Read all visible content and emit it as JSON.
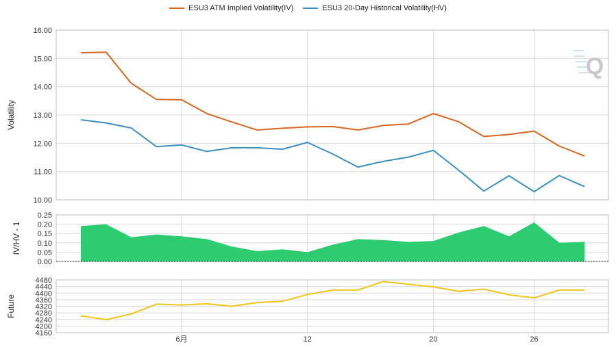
{
  "chart_data": [
    {
      "panel": "volatility",
      "type": "line",
      "ylabel": "Volatility",
      "ylim": [
        10,
        16
      ],
      "yticks": [
        "10.00",
        "11.00",
        "12.00",
        "13.00",
        "14.00",
        "15.00",
        "16.00"
      ],
      "grid": true,
      "legend": "top-center",
      "series": [
        {
          "name": "ESU3 ATM Implied Volatility(IV)",
          "color": "#d9661f",
          "values": [
            15.2,
            15.22,
            14.12,
            13.55,
            13.54,
            13.05,
            12.75,
            12.47,
            12.53,
            12.58,
            12.59,
            12.47,
            12.63,
            12.68,
            13.05,
            12.76,
            12.24,
            12.31,
            12.43,
            11.9,
            11.55
          ]
        },
        {
          "name": "ESU3 20-Day Historical Volatility(HV)",
          "color": "#3a8fbf",
          "values": [
            12.83,
            12.72,
            12.54,
            11.88,
            11.94,
            11.71,
            11.84,
            11.84,
            11.79,
            12.03,
            11.62,
            11.16,
            11.36,
            11.51,
            11.75,
            11.05,
            10.31,
            10.85,
            10.29,
            10.86,
            10.47
          ]
        }
      ]
    },
    {
      "panel": "ratio",
      "type": "area",
      "ylabel": "IV/HV - 1",
      "ylim": [
        0,
        0.25
      ],
      "yticks": [
        "0.00",
        "0.05",
        "0.10",
        "0.15",
        "0.20",
        "0.25"
      ],
      "color": "#2ecc71",
      "values": [
        0.19,
        0.2,
        0.13,
        0.145,
        0.135,
        0.12,
        0.08,
        0.055,
        0.065,
        0.05,
        0.09,
        0.12,
        0.115,
        0.105,
        0.11,
        0.155,
        0.19,
        0.135,
        0.21,
        0.1,
        0.105
      ]
    },
    {
      "panel": "future",
      "type": "line",
      "ylabel": "Future",
      "ylim": [
        4160,
        4480
      ],
      "yticks": [
        "4160",
        "4200",
        "4240",
        "4280",
        "4320",
        "4360",
        "4400",
        "4440",
        "4480"
      ],
      "color": "#f0c419",
      "values": [
        4262,
        4239,
        4273,
        4333,
        4328,
        4335,
        4320,
        4343,
        4350,
        4392,
        4418,
        4419,
        4470,
        4454,
        4438,
        4411,
        4424,
        4390,
        4371,
        4419,
        4419
      ]
    }
  ],
  "x_axis": {
    "ticks": [
      {
        "label": "6月",
        "pos": 4.0
      },
      {
        "label": "12",
        "pos": 9.0
      },
      {
        "label": "20",
        "pos": 14.0
      },
      {
        "label": "26",
        "pos": 18.0
      }
    ]
  },
  "watermark": "Q"
}
